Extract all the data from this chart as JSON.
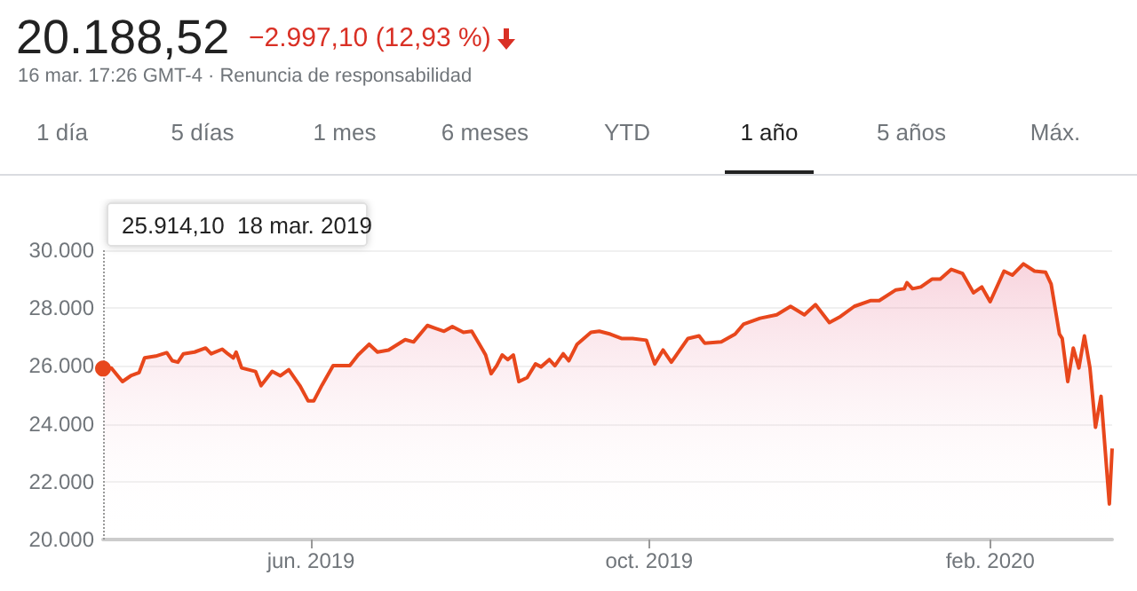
{
  "chart_data": {
    "type": "area",
    "title": "20.188,52",
    "subtitle": "−2.997,10 (12,93 %)",
    "annotations": [
      "16 mar. 17:26 GMT-4 · Renuncia de responsabilidad",
      "1 día",
      "5 días",
      "1 mes",
      "6 meses",
      "YTD",
      "1 año",
      "5 años",
      "Máx.",
      "25.914,10  18 mar. 2019"
    ],
    "x": [
      "2019-03-18",
      "2019-03-21",
      "2019-03-25",
      "2019-03-28",
      "2019-03-31",
      "2019-04-02",
      "2019-04-06",
      "2019-04-10",
      "2019-04-12",
      "2019-04-14",
      "2019-04-16",
      "2019-04-20",
      "2019-04-24",
      "2019-04-26",
      "2019-04-30",
      "2019-05-02",
      "2019-05-04",
      "2019-05-05",
      "2019-05-07",
      "2019-05-12",
      "2019-05-14",
      "2019-05-18",
      "2019-05-21",
      "2019-05-24",
      "2019-05-28",
      "2019-05-31",
      "2019-06-02",
      "2019-06-05",
      "2019-06-09",
      "2019-06-15",
      "2019-06-18",
      "2019-06-22",
      "2019-06-25",
      "2019-06-29",
      "2019-07-05",
      "2019-07-08",
      "2019-07-13",
      "2019-07-16",
      "2019-07-19",
      "2019-07-22",
      "2019-07-26",
      "2019-07-29",
      "2019-08-02",
      "2019-08-03",
      "2019-08-05",
      "2019-08-07",
      "2019-08-09",
      "2019-08-11",
      "2019-08-13",
      "2019-08-15",
      "2019-08-18",
      "2019-08-21",
      "2019-08-23",
      "2019-08-26",
      "2019-08-28",
      "2019-08-31",
      "2019-09-02",
      "2019-09-05",
      "2019-09-10",
      "2019-09-13",
      "2019-09-17",
      "2019-09-21",
      "2019-09-25",
      "2019-09-30",
      "2019-10-03",
      "2019-10-06",
      "2019-10-09",
      "2019-10-15",
      "2019-10-19",
      "2019-10-21",
      "2019-10-27",
      "2019-11-01",
      "2019-11-04",
      "2019-11-10",
      "2019-11-16",
      "2019-11-21",
      "2019-11-26",
      "2019-11-30",
      "2019-12-05",
      "2019-12-09",
      "2019-12-14",
      "2019-12-20",
      "2019-12-23",
      "2019-12-29",
      "2020-01-01",
      "2020-01-02",
      "2020-01-04",
      "2020-01-07",
      "2020-01-11",
      "2020-01-14",
      "2020-01-18",
      "2020-01-22",
      "2020-01-26",
      "2020-01-29",
      "2020-02-01",
      "2020-02-06",
      "2020-02-09",
      "2020-02-13",
      "2020-02-17",
      "2020-02-21",
      "2020-02-23",
      "2020-02-26",
      "2020-02-27",
      "2020-02-29",
      "2020-03-02",
      "2020-03-04",
      "2020-03-06",
      "2020-03-08",
      "2020-03-10",
      "2020-03-12",
      "2020-03-15",
      "2020-03-16"
    ],
    "series": [
      {
        "color": "#e8471c",
        "values": [
          25910,
          25930,
          25460,
          25660,
          25770,
          26280,
          26340,
          26460,
          26180,
          26130,
          26420,
          26480,
          26620,
          26420,
          26580,
          26420,
          26280,
          26480,
          25930,
          25810,
          25320,
          25810,
          25660,
          25870,
          25320,
          24790,
          24790,
          25340,
          26010,
          26010,
          26380,
          26750,
          26480,
          26550,
          26910,
          26830,
          27400,
          27300,
          27200,
          27360,
          27160,
          27200,
          26550,
          26380,
          25730,
          26010,
          26380,
          26220,
          26380,
          25460,
          25600,
          26070,
          25970,
          26220,
          26010,
          26420,
          26180,
          26750,
          27160,
          27200,
          27100,
          26950,
          26950,
          26890,
          26070,
          26550,
          26130,
          26950,
          27040,
          26790,
          26830,
          27100,
          27440,
          27650,
          27770,
          28060,
          27770,
          28120,
          27500,
          27710,
          28060,
          28260,
          28260,
          28630,
          28670,
          28880,
          28670,
          28730,
          29000,
          29000,
          29340,
          29200,
          28530,
          28730,
          28220,
          29280,
          29140,
          29530,
          29280,
          29240,
          28830,
          27100,
          26950,
          25460,
          26620,
          25930,
          27040,
          25930,
          23880,
          24950,
          21230,
          23150
        ]
      }
    ],
    "xlim": [
      "2019-03-18",
      "2020-03-16"
    ],
    "xticks": [
      {
        "value": "2019-06-01",
        "label": "jun. 2019"
      },
      {
        "value": "2019-10-01",
        "label": "oct. 2019"
      },
      {
        "value": "2020-02-01",
        "label": "feb. 2020"
      }
    ],
    "ylim": [
      20000,
      30000
    ],
    "yticks": [
      {
        "value": 20000,
        "label": "20.000"
      },
      {
        "value": 22000,
        "label": "22.000"
      },
      {
        "value": 24000,
        "label": "24.000"
      },
      {
        "value": 26000,
        "label": "26.000"
      },
      {
        "value": 28000,
        "label": "28.000"
      },
      {
        "value": 30000,
        "label": "30.000"
      }
    ],
    "ref_lines": [
      {
        "axis": "x",
        "value": "2019-03-18",
        "label": null,
        "color": "#999999",
        "line_style": "dotted"
      }
    ],
    "grid": "y",
    "marker": "none"
  }
}
